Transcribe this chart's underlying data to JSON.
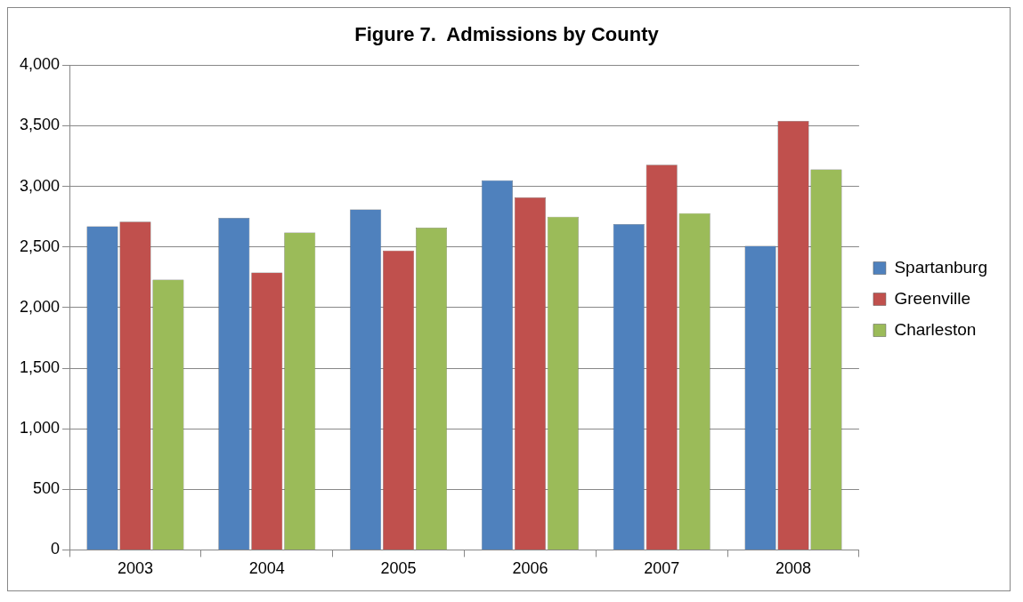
{
  "chart_data": {
    "type": "bar",
    "title": "Figure 7.  Admissions by County",
    "categories": [
      "2003",
      "2004",
      "2005",
      "2006",
      "2007",
      "2008"
    ],
    "series": [
      {
        "name": "Spartanburg",
        "color": "#4f81bd",
        "values": [
          2670,
          2740,
          2810,
          3050,
          2690,
          2510
        ]
      },
      {
        "name": "Greenville",
        "color": "#c0504d",
        "values": [
          2710,
          2290,
          2470,
          2910,
          3180,
          3540
        ]
      },
      {
        "name": "Charleston",
        "color": "#9bbb59",
        "values": [
          2230,
          2620,
          2660,
          2750,
          2780,
          3140
        ]
      }
    ],
    "ylim": [
      0,
      4000
    ],
    "yticks": [
      0,
      500,
      {
        "value": 1000,
        "label": "1,000"
      },
      {
        "value": 1500,
        "label": "1,500"
      },
      {
        "value": 2000,
        "label": "2,000"
      },
      {
        "value": 2500,
        "label": "2,500"
      },
      {
        "value": 3000,
        "label": "3,000"
      },
      {
        "value": 3500,
        "label": "3,500"
      },
      {
        "value": 4000,
        "label": "4,000"
      }
    ],
    "grid": "y",
    "legend": "right"
  }
}
